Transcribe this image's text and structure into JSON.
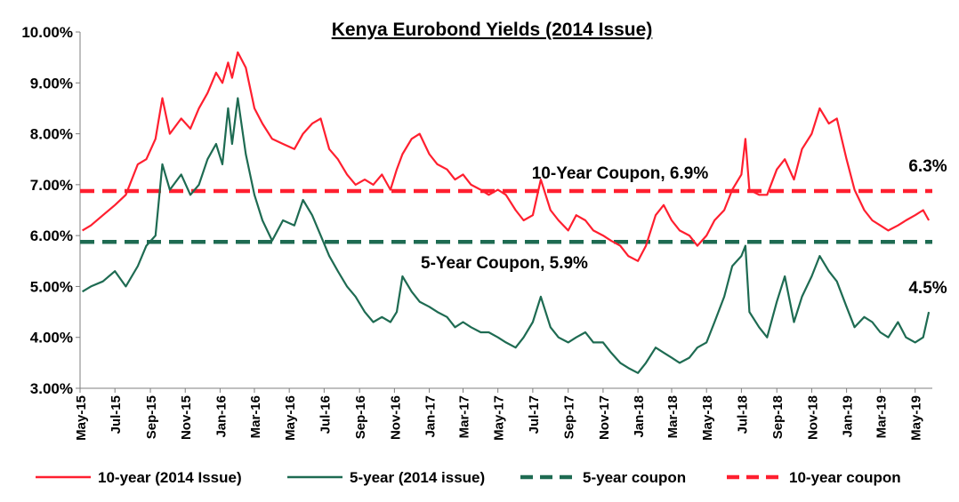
{
  "chart_data": {
    "type": "line",
    "title": "Kenya Eurobond Yields (2014 Issue)",
    "xlabel": "",
    "ylabel": "",
    "ylim": [
      3.0,
      10.0
    ],
    "y_ticks": [
      "3.00%",
      "4.00%",
      "5.00%",
      "6.00%",
      "7.00%",
      "8.00%",
      "9.00%",
      "10.00%"
    ],
    "x_ticks": [
      "May-15",
      "Jul-15",
      "Sep-15",
      "Nov-15",
      "Jan-16",
      "Mar-16",
      "May-16",
      "Jul-16",
      "Sep-16",
      "Nov-16",
      "Jan-17",
      "Mar-17",
      "May-17",
      "Jul-17",
      "Sep-17",
      "Nov-17",
      "Jan-18",
      "Mar-18",
      "May-18",
      "Jul-18",
      "Sep-18",
      "Nov-18",
      "Jan-19",
      "Mar-19",
      "May-19"
    ],
    "grid": false,
    "legend_position": "bottom",
    "colors": {
      "ten_year": "#ff1f2f",
      "five_year": "#1e6b52",
      "five_coupon": "#1e6b52",
      "ten_coupon": "#ff1f2f"
    },
    "series": [
      {
        "name": "10-year (2014 Issue)",
        "style": "solid",
        "x": [
          "2015-05-05",
          "2015-05-20",
          "2015-06-10",
          "2015-07-01",
          "2015-07-20",
          "2015-08-10",
          "2015-08-25",
          "2015-09-10",
          "2015-09-22",
          "2015-10-05",
          "2015-10-25",
          "2015-11-10",
          "2015-11-25",
          "2015-12-10",
          "2015-12-25",
          "2016-01-05",
          "2016-01-15",
          "2016-01-22",
          "2016-02-01",
          "2016-02-15",
          "2016-03-01",
          "2016-03-15",
          "2016-04-01",
          "2016-04-20",
          "2016-05-10",
          "2016-05-25",
          "2016-06-10",
          "2016-06-25",
          "2016-07-10",
          "2016-07-25",
          "2016-08-10",
          "2016-08-25",
          "2016-09-10",
          "2016-09-25",
          "2016-10-10",
          "2016-10-25",
          "2016-11-05",
          "2016-11-15",
          "2016-12-01",
          "2016-12-15",
          "2017-01-01",
          "2017-01-15",
          "2017-02-01",
          "2017-02-15",
          "2017-03-01",
          "2017-03-15",
          "2017-04-01",
          "2017-04-15",
          "2017-05-01",
          "2017-05-15",
          "2017-06-01",
          "2017-06-15",
          "2017-07-01",
          "2017-07-15",
          "2017-08-01",
          "2017-08-15",
          "2017-09-01",
          "2017-09-15",
          "2017-10-01",
          "2017-10-15",
          "2017-11-01",
          "2017-11-15",
          "2017-12-01",
          "2017-12-15",
          "2018-01-01",
          "2018-01-15",
          "2018-02-01",
          "2018-02-15",
          "2018-03-01",
          "2018-03-15",
          "2018-04-01",
          "2018-04-15",
          "2018-05-01",
          "2018-05-15",
          "2018-06-01",
          "2018-06-15",
          "2018-07-01",
          "2018-07-08",
          "2018-07-15",
          "2018-08-01",
          "2018-08-15",
          "2018-09-01",
          "2018-09-15",
          "2018-10-01",
          "2018-10-15",
          "2018-11-01",
          "2018-11-15",
          "2018-12-01",
          "2018-12-15",
          "2019-01-01",
          "2019-01-15",
          "2019-02-01",
          "2019-02-15",
          "2019-03-01",
          "2019-03-15",
          "2019-04-01",
          "2019-04-15",
          "2019-05-01",
          "2019-05-15",
          "2019-05-25"
        ],
        "values": [
          6.1,
          6.2,
          6.4,
          6.6,
          6.8,
          7.4,
          7.5,
          7.9,
          8.7,
          8.0,
          8.3,
          8.1,
          8.5,
          8.8,
          9.2,
          9.0,
          9.4,
          9.1,
          9.6,
          9.3,
          8.5,
          8.2,
          7.9,
          7.8,
          7.7,
          8.0,
          8.2,
          8.3,
          7.7,
          7.5,
          7.2,
          7.0,
          7.1,
          7.0,
          7.2,
          6.9,
          7.3,
          7.6,
          7.9,
          8.0,
          7.6,
          7.4,
          7.3,
          7.1,
          7.2,
          7.0,
          6.9,
          6.8,
          6.9,
          6.8,
          6.5,
          6.3,
          6.4,
          7.1,
          6.5,
          6.3,
          6.1,
          6.4,
          6.3,
          6.1,
          6.0,
          5.9,
          5.8,
          5.6,
          5.5,
          5.8,
          6.4,
          6.6,
          6.3,
          6.1,
          6.0,
          5.8,
          6.0,
          6.3,
          6.5,
          6.9,
          7.2,
          7.9,
          6.9,
          6.8,
          6.8,
          7.3,
          7.5,
          7.1,
          7.7,
          8.0,
          8.5,
          8.2,
          8.3,
          7.5,
          6.9,
          6.5,
          6.3,
          6.2,
          6.1,
          6.2,
          6.3,
          6.4,
          6.5,
          6.3
        ]
      },
      {
        "name": "5-year (2014 issue)",
        "style": "solid",
        "x": [
          "2015-05-05",
          "2015-05-20",
          "2015-06-10",
          "2015-07-01",
          "2015-07-20",
          "2015-08-10",
          "2015-08-25",
          "2015-09-10",
          "2015-09-22",
          "2015-10-05",
          "2015-10-25",
          "2015-11-10",
          "2015-11-25",
          "2015-12-10",
          "2015-12-25",
          "2016-01-05",
          "2016-01-15",
          "2016-01-22",
          "2016-02-01",
          "2016-02-15",
          "2016-03-01",
          "2016-03-15",
          "2016-04-01",
          "2016-04-20",
          "2016-05-10",
          "2016-05-25",
          "2016-06-10",
          "2016-06-25",
          "2016-07-10",
          "2016-07-25",
          "2016-08-10",
          "2016-08-25",
          "2016-09-10",
          "2016-09-25",
          "2016-10-10",
          "2016-10-25",
          "2016-11-05",
          "2016-11-15",
          "2016-12-01",
          "2016-12-15",
          "2017-01-01",
          "2017-01-15",
          "2017-02-01",
          "2017-02-15",
          "2017-03-01",
          "2017-03-15",
          "2017-04-01",
          "2017-04-15",
          "2017-05-01",
          "2017-05-15",
          "2017-06-01",
          "2017-06-15",
          "2017-07-01",
          "2017-07-15",
          "2017-08-01",
          "2017-08-15",
          "2017-09-01",
          "2017-09-15",
          "2017-10-01",
          "2017-10-15",
          "2017-11-01",
          "2017-11-15",
          "2017-12-01",
          "2017-12-15",
          "2018-01-01",
          "2018-01-15",
          "2018-02-01",
          "2018-02-15",
          "2018-03-01",
          "2018-03-15",
          "2018-04-01",
          "2018-04-15",
          "2018-05-01",
          "2018-05-15",
          "2018-06-01",
          "2018-06-15",
          "2018-07-01",
          "2018-07-08",
          "2018-07-15",
          "2018-08-01",
          "2018-08-15",
          "2018-09-01",
          "2018-09-15",
          "2018-10-01",
          "2018-10-15",
          "2018-11-01",
          "2018-11-15",
          "2018-12-01",
          "2018-12-15",
          "2019-01-01",
          "2019-01-15",
          "2019-02-01",
          "2019-02-15",
          "2019-03-01",
          "2019-03-15",
          "2019-04-01",
          "2019-04-15",
          "2019-05-01",
          "2019-05-15",
          "2019-05-25"
        ],
        "values": [
          4.9,
          5.0,
          5.1,
          5.3,
          5.0,
          5.4,
          5.8,
          6.0,
          7.4,
          6.9,
          7.2,
          6.8,
          7.0,
          7.5,
          7.8,
          7.4,
          8.5,
          7.8,
          8.7,
          7.6,
          6.8,
          6.3,
          5.9,
          6.3,
          6.2,
          6.7,
          6.4,
          6.0,
          5.6,
          5.3,
          5.0,
          4.8,
          4.5,
          4.3,
          4.4,
          4.3,
          4.5,
          5.2,
          4.9,
          4.7,
          4.6,
          4.5,
          4.4,
          4.2,
          4.3,
          4.2,
          4.1,
          4.1,
          4.0,
          3.9,
          3.8,
          4.0,
          4.3,
          4.8,
          4.2,
          4.0,
          3.9,
          4.0,
          4.1,
          3.9,
          3.9,
          3.7,
          3.5,
          3.4,
          3.3,
          3.5,
          3.8,
          3.7,
          3.6,
          3.5,
          3.6,
          3.8,
          3.9,
          4.3,
          4.8,
          5.4,
          5.6,
          5.8,
          4.5,
          4.2,
          4.0,
          4.7,
          5.2,
          4.3,
          4.8,
          5.2,
          5.6,
          5.3,
          5.1,
          4.6,
          4.2,
          4.4,
          4.3,
          4.1,
          4.0,
          4.3,
          4.0,
          3.9,
          4.0,
          4.5
        ]
      },
      {
        "name": "5-year coupon",
        "style": "dashed",
        "x": [
          "2015-05-01",
          "2019-05-31"
        ],
        "values": [
          5.875,
          5.875
        ]
      },
      {
        "name": "10-year coupon",
        "style": "dashed",
        "x": [
          "2015-05-01",
          "2019-05-31"
        ],
        "values": [
          6.875,
          6.875
        ]
      }
    ],
    "annotations": {
      "ten_coupon_label": "10-Year Coupon, 6.9%",
      "five_coupon_label": "5-Year Coupon, 5.9%",
      "ten_end_label": "6.3%",
      "five_end_label": "4.5%"
    }
  }
}
